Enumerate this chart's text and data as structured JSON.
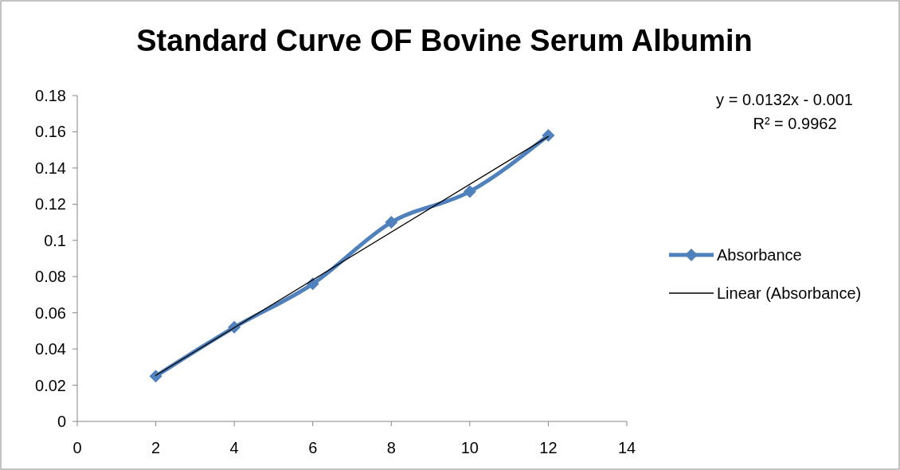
{
  "chart_data": {
    "type": "line",
    "title": "Standard Curve OF Bovine Serum Albumin",
    "x": [
      2,
      4,
      6,
      8,
      10,
      12
    ],
    "series": [
      {
        "name": "Absorbance",
        "color": "#4f81bd",
        "values": [
          0.025,
          0.052,
          0.076,
          0.11,
          0.127,
          0.158
        ],
        "marker": "diamond"
      },
      {
        "name": "Linear (Absorbance)",
        "color": "#000000",
        "type": "line",
        "x": [
          2,
          12
        ],
        "values": [
          0.0254,
          0.1574
        ],
        "marker": "none"
      }
    ],
    "xlim": [
      0,
      14
    ],
    "xticks": [
      0,
      2,
      4,
      6,
      8,
      10,
      12,
      14
    ],
    "ylim": [
      0,
      0.18
    ],
    "yticks": [
      0,
      0.02,
      0.04,
      0.06,
      0.08,
      0.1,
      0.12,
      0.14,
      0.16,
      0.18
    ],
    "annotations": [
      "y = 0.0132x - 0.001",
      "R² = 0.9962"
    ],
    "grid": false,
    "legend": "right",
    "line_style": "solid"
  }
}
